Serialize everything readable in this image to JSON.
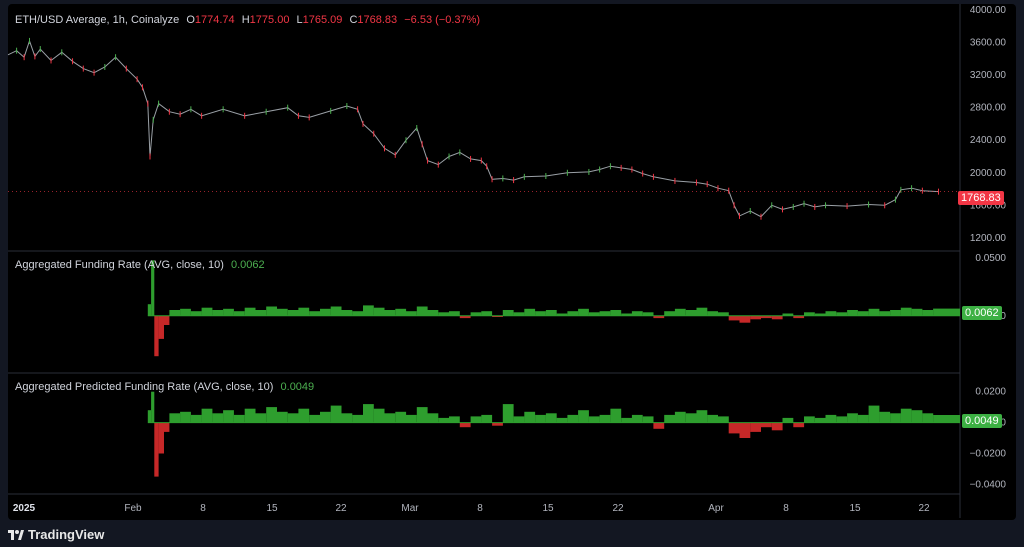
{
  "header": {
    "symbol_text": "ETH/USD Average, 1h, Coinalyze",
    "open_label": "O",
    "open": "1774.74",
    "high_label": "H",
    "high": "1775.00",
    "low_label": "L",
    "low": "1765.09",
    "close_label": "C",
    "close": "1768.83",
    "change": "−6.53 (−0.37%)"
  },
  "indicator1": {
    "title": "Aggregated Funding Rate (AVG, close, 10)",
    "value": "0.0062"
  },
  "indicator2": {
    "title": "Aggregated Predicted Funding Rate (AVG, close, 10)",
    "value": "0.0049"
  },
  "price_tag": "1768.83",
  "brand": "TradingView",
  "colors": {
    "up": "#4caf50",
    "down": "#f23645",
    "bar_up": "#2e9e2e",
    "bar_down": "#c62828",
    "axis_text": "#b2b5be",
    "separator": "#2a2e39",
    "price_line": "#9aa0a6"
  },
  "chart_data": [
    {
      "type": "line",
      "title": "ETH/USD Average, 1h, Coinalyze",
      "x_ticks": [
        "2025",
        "Feb",
        "8",
        "15",
        "22",
        "Mar",
        "8",
        "15",
        "22",
        "Apr",
        "8",
        "15",
        "22"
      ],
      "y_ticks": [
        "4000.00",
        "3600.00",
        "3200.00",
        "2800.00",
        "2400.00",
        "2000.00",
        "1600.00",
        "1200.00"
      ],
      "ylim": [
        1100,
        4000
      ],
      "series": [
        {
          "values": [
            [
              0.0,
              3450
            ],
            [
              0.8,
              3500
            ],
            [
              1.5,
              3420
            ],
            [
              2.0,
              3620
            ],
            [
              2.5,
              3430
            ],
            [
              3.0,
              3520
            ],
            [
              4.0,
              3380
            ],
            [
              5.0,
              3480
            ],
            [
              6.0,
              3370
            ],
            [
              7.0,
              3280
            ],
            [
              8.0,
              3230
            ],
            [
              9.0,
              3300
            ],
            [
              10.0,
              3420
            ],
            [
              11.0,
              3280
            ],
            [
              12.0,
              3150
            ],
            [
              12.5,
              3050
            ],
            [
              13.0,
              2850
            ],
            [
              13.2,
              2200
            ],
            [
              13.5,
              2650
            ],
            [
              14.0,
              2850
            ],
            [
              15.0,
              2750
            ],
            [
              16.0,
              2720
            ],
            [
              17.0,
              2780
            ],
            [
              18.0,
              2700
            ],
            [
              20.0,
              2780
            ],
            [
              22.0,
              2700
            ],
            [
              24.0,
              2750
            ],
            [
              26.0,
              2800
            ],
            [
              27.0,
              2700
            ],
            [
              28.0,
              2680
            ],
            [
              30.0,
              2760
            ],
            [
              31.5,
              2820
            ],
            [
              32.5,
              2780
            ],
            [
              33.0,
              2600
            ],
            [
              34.0,
              2480
            ],
            [
              35.0,
              2300
            ],
            [
              36.0,
              2220
            ],
            [
              37.0,
              2400
            ],
            [
              38.0,
              2550
            ],
            [
              38.5,
              2350
            ],
            [
              39.0,
              2150
            ],
            [
              40.0,
              2100
            ],
            [
              41.0,
              2200
            ],
            [
              42.0,
              2250
            ],
            [
              43.0,
              2170
            ],
            [
              44.0,
              2150
            ],
            [
              44.5,
              2080
            ],
            [
              45.0,
              1920
            ],
            [
              46.0,
              1930
            ],
            [
              47.0,
              1910
            ],
            [
              48.0,
              1950
            ],
            [
              50.0,
              1960
            ],
            [
              52.0,
              2000
            ],
            [
              54.0,
              2010
            ],
            [
              55.0,
              2040
            ],
            [
              56.0,
              2080
            ],
            [
              57.0,
              2060
            ],
            [
              58.0,
              2040
            ],
            [
              59.0,
              1990
            ],
            [
              60.0,
              1950
            ],
            [
              62.0,
              1900
            ],
            [
              64.0,
              1880
            ],
            [
              65.0,
              1860
            ],
            [
              66.0,
              1810
            ],
            [
              67.0,
              1780
            ],
            [
              67.5,
              1600
            ],
            [
              68.0,
              1470
            ],
            [
              69.0,
              1530
            ],
            [
              70.0,
              1460
            ],
            [
              71.0,
              1600
            ],
            [
              72.0,
              1550
            ],
            [
              73.0,
              1580
            ],
            [
              74.0,
              1620
            ],
            [
              75.0,
              1580
            ],
            [
              76.0,
              1600
            ],
            [
              78.0,
              1590
            ],
            [
              80.0,
              1610
            ],
            [
              81.5,
              1600
            ],
            [
              82.5,
              1670
            ],
            [
              83.0,
              1790
            ],
            [
              84.0,
              1810
            ],
            [
              85.0,
              1780
            ],
            [
              86.5,
              1768
            ]
          ]
        }
      ]
    },
    {
      "type": "bar",
      "title": "Aggregated Funding Rate (AVG, close, 10)",
      "y_ticks": [
        "0.0500",
        "0.0000"
      ],
      "ylim": [
        -0.04,
        0.05
      ],
      "values": [
        [
          13.0,
          0.01
        ],
        [
          13.3,
          0.048
        ],
        [
          13.6,
          -0.035
        ],
        [
          14.0,
          -0.02
        ],
        [
          14.5,
          -0.008
        ],
        [
          15.0,
          0.005
        ],
        [
          16.0,
          0.006
        ],
        [
          17.0,
          0.004
        ],
        [
          18.0,
          0.007
        ],
        [
          19.0,
          0.005
        ],
        [
          20.0,
          0.006
        ],
        [
          21.0,
          0.004
        ],
        [
          22.0,
          0.007
        ],
        [
          23.0,
          0.005
        ],
        [
          24.0,
          0.008
        ],
        [
          25.0,
          0.006
        ],
        [
          26.0,
          0.005
        ],
        [
          27.0,
          0.007
        ],
        [
          28.0,
          0.004
        ],
        [
          29.0,
          0.006
        ],
        [
          30.0,
          0.008
        ],
        [
          31.0,
          0.005
        ],
        [
          32.0,
          0.004
        ],
        [
          33.0,
          0.009
        ],
        [
          34.0,
          0.007
        ],
        [
          35.0,
          0.005
        ],
        [
          36.0,
          0.006
        ],
        [
          37.0,
          0.004
        ],
        [
          38.0,
          0.008
        ],
        [
          39.0,
          0.005
        ],
        [
          40.0,
          0.003
        ],
        [
          41.0,
          0.004
        ],
        [
          42.0,
          -0.002
        ],
        [
          43.0,
          0.003
        ],
        [
          44.0,
          0.004
        ],
        [
          45.0,
          -0.001
        ],
        [
          46.0,
          0.005
        ],
        [
          47.0,
          0.003
        ],
        [
          48.0,
          0.006
        ],
        [
          49.0,
          0.004
        ],
        [
          50.0,
          0.005
        ],
        [
          51.0,
          0.002
        ],
        [
          52.0,
          0.004
        ],
        [
          53.0,
          0.006
        ],
        [
          54.0,
          0.003
        ],
        [
          55.0,
          0.004
        ],
        [
          56.0,
          0.005
        ],
        [
          57.0,
          0.002
        ],
        [
          58.0,
          0.004
        ],
        [
          59.0,
          0.003
        ],
        [
          60.0,
          -0.002
        ],
        [
          61.0,
          0.004
        ],
        [
          62.0,
          0.006
        ],
        [
          63.0,
          0.005
        ],
        [
          64.0,
          0.007
        ],
        [
          65.0,
          0.004
        ],
        [
          66.0,
          0.003
        ],
        [
          67.0,
          -0.004
        ],
        [
          68.0,
          -0.006
        ],
        [
          69.0,
          -0.003
        ],
        [
          70.0,
          -0.002
        ],
        [
          71.0,
          -0.003
        ],
        [
          72.0,
          0.002
        ],
        [
          73.0,
          -0.002
        ],
        [
          74.0,
          0.003
        ],
        [
          75.0,
          0.002
        ],
        [
          76.0,
          0.004
        ],
        [
          77.0,
          0.003
        ],
        [
          78.0,
          0.005
        ],
        [
          79.0,
          0.004
        ],
        [
          80.0,
          0.006
        ],
        [
          81.0,
          0.004
        ],
        [
          82.0,
          0.005
        ],
        [
          83.0,
          0.007
        ],
        [
          84.0,
          0.006
        ],
        [
          85.0,
          0.005
        ],
        [
          86.0,
          0.0062
        ]
      ]
    },
    {
      "type": "bar",
      "title": "Aggregated Predicted Funding Rate (AVG, close, 10)",
      "y_ticks": [
        "0.0200",
        "0.0000",
        "−0.0200",
        "−0.0400"
      ],
      "ylim": [
        -0.045,
        0.025
      ],
      "values": [
        [
          13.0,
          0.008
        ],
        [
          13.3,
          0.02
        ],
        [
          13.6,
          -0.035
        ],
        [
          14.0,
          -0.02
        ],
        [
          14.5,
          -0.006
        ],
        [
          15.0,
          0.006
        ],
        [
          16.0,
          0.007
        ],
        [
          17.0,
          0.005
        ],
        [
          18.0,
          0.009
        ],
        [
          19.0,
          0.006
        ],
        [
          20.0,
          0.008
        ],
        [
          21.0,
          0.005
        ],
        [
          22.0,
          0.009
        ],
        [
          23.0,
          0.006
        ],
        [
          24.0,
          0.01
        ],
        [
          25.0,
          0.007
        ],
        [
          26.0,
          0.006
        ],
        [
          27.0,
          0.009
        ],
        [
          28.0,
          0.005
        ],
        [
          29.0,
          0.007
        ],
        [
          30.0,
          0.011
        ],
        [
          31.0,
          0.006
        ],
        [
          32.0,
          0.005
        ],
        [
          33.0,
          0.012
        ],
        [
          34.0,
          0.009
        ],
        [
          35.0,
          0.006
        ],
        [
          36.0,
          0.007
        ],
        [
          37.0,
          0.005
        ],
        [
          38.0,
          0.01
        ],
        [
          39.0,
          0.006
        ],
        [
          40.0,
          0.003
        ],
        [
          41.0,
          0.004
        ],
        [
          42.0,
          -0.003
        ],
        [
          43.0,
          0.004
        ],
        [
          44.0,
          0.005
        ],
        [
          45.0,
          -0.002
        ],
        [
          46.0,
          0.012
        ],
        [
          47.0,
          0.004
        ],
        [
          48.0,
          0.007
        ],
        [
          49.0,
          0.005
        ],
        [
          50.0,
          0.006
        ],
        [
          51.0,
          0.003
        ],
        [
          52.0,
          0.005
        ],
        [
          53.0,
          0.008
        ],
        [
          54.0,
          0.004
        ],
        [
          55.0,
          0.005
        ],
        [
          56.0,
          0.009
        ],
        [
          57.0,
          0.003
        ],
        [
          58.0,
          0.005
        ],
        [
          59.0,
          0.004
        ],
        [
          60.0,
          -0.004
        ],
        [
          61.0,
          0.005
        ],
        [
          62.0,
          0.007
        ],
        [
          63.0,
          0.006
        ],
        [
          64.0,
          0.008
        ],
        [
          65.0,
          0.005
        ],
        [
          66.0,
          0.004
        ],
        [
          67.0,
          -0.007
        ],
        [
          68.0,
          -0.01
        ],
        [
          69.0,
          -0.006
        ],
        [
          70.0,
          -0.003
        ],
        [
          71.0,
          -0.005
        ],
        [
          72.0,
          0.003
        ],
        [
          73.0,
          -0.003
        ],
        [
          74.0,
          0.004
        ],
        [
          75.0,
          0.003
        ],
        [
          76.0,
          0.005
        ],
        [
          77.0,
          0.004
        ],
        [
          78.0,
          0.006
        ],
        [
          79.0,
          0.005
        ],
        [
          80.0,
          0.011
        ],
        [
          81.0,
          0.007
        ],
        [
          82.0,
          0.006
        ],
        [
          83.0,
          0.009
        ],
        [
          84.0,
          0.008
        ],
        [
          85.0,
          0.006
        ],
        [
          86.0,
          0.0049
        ]
      ]
    }
  ]
}
